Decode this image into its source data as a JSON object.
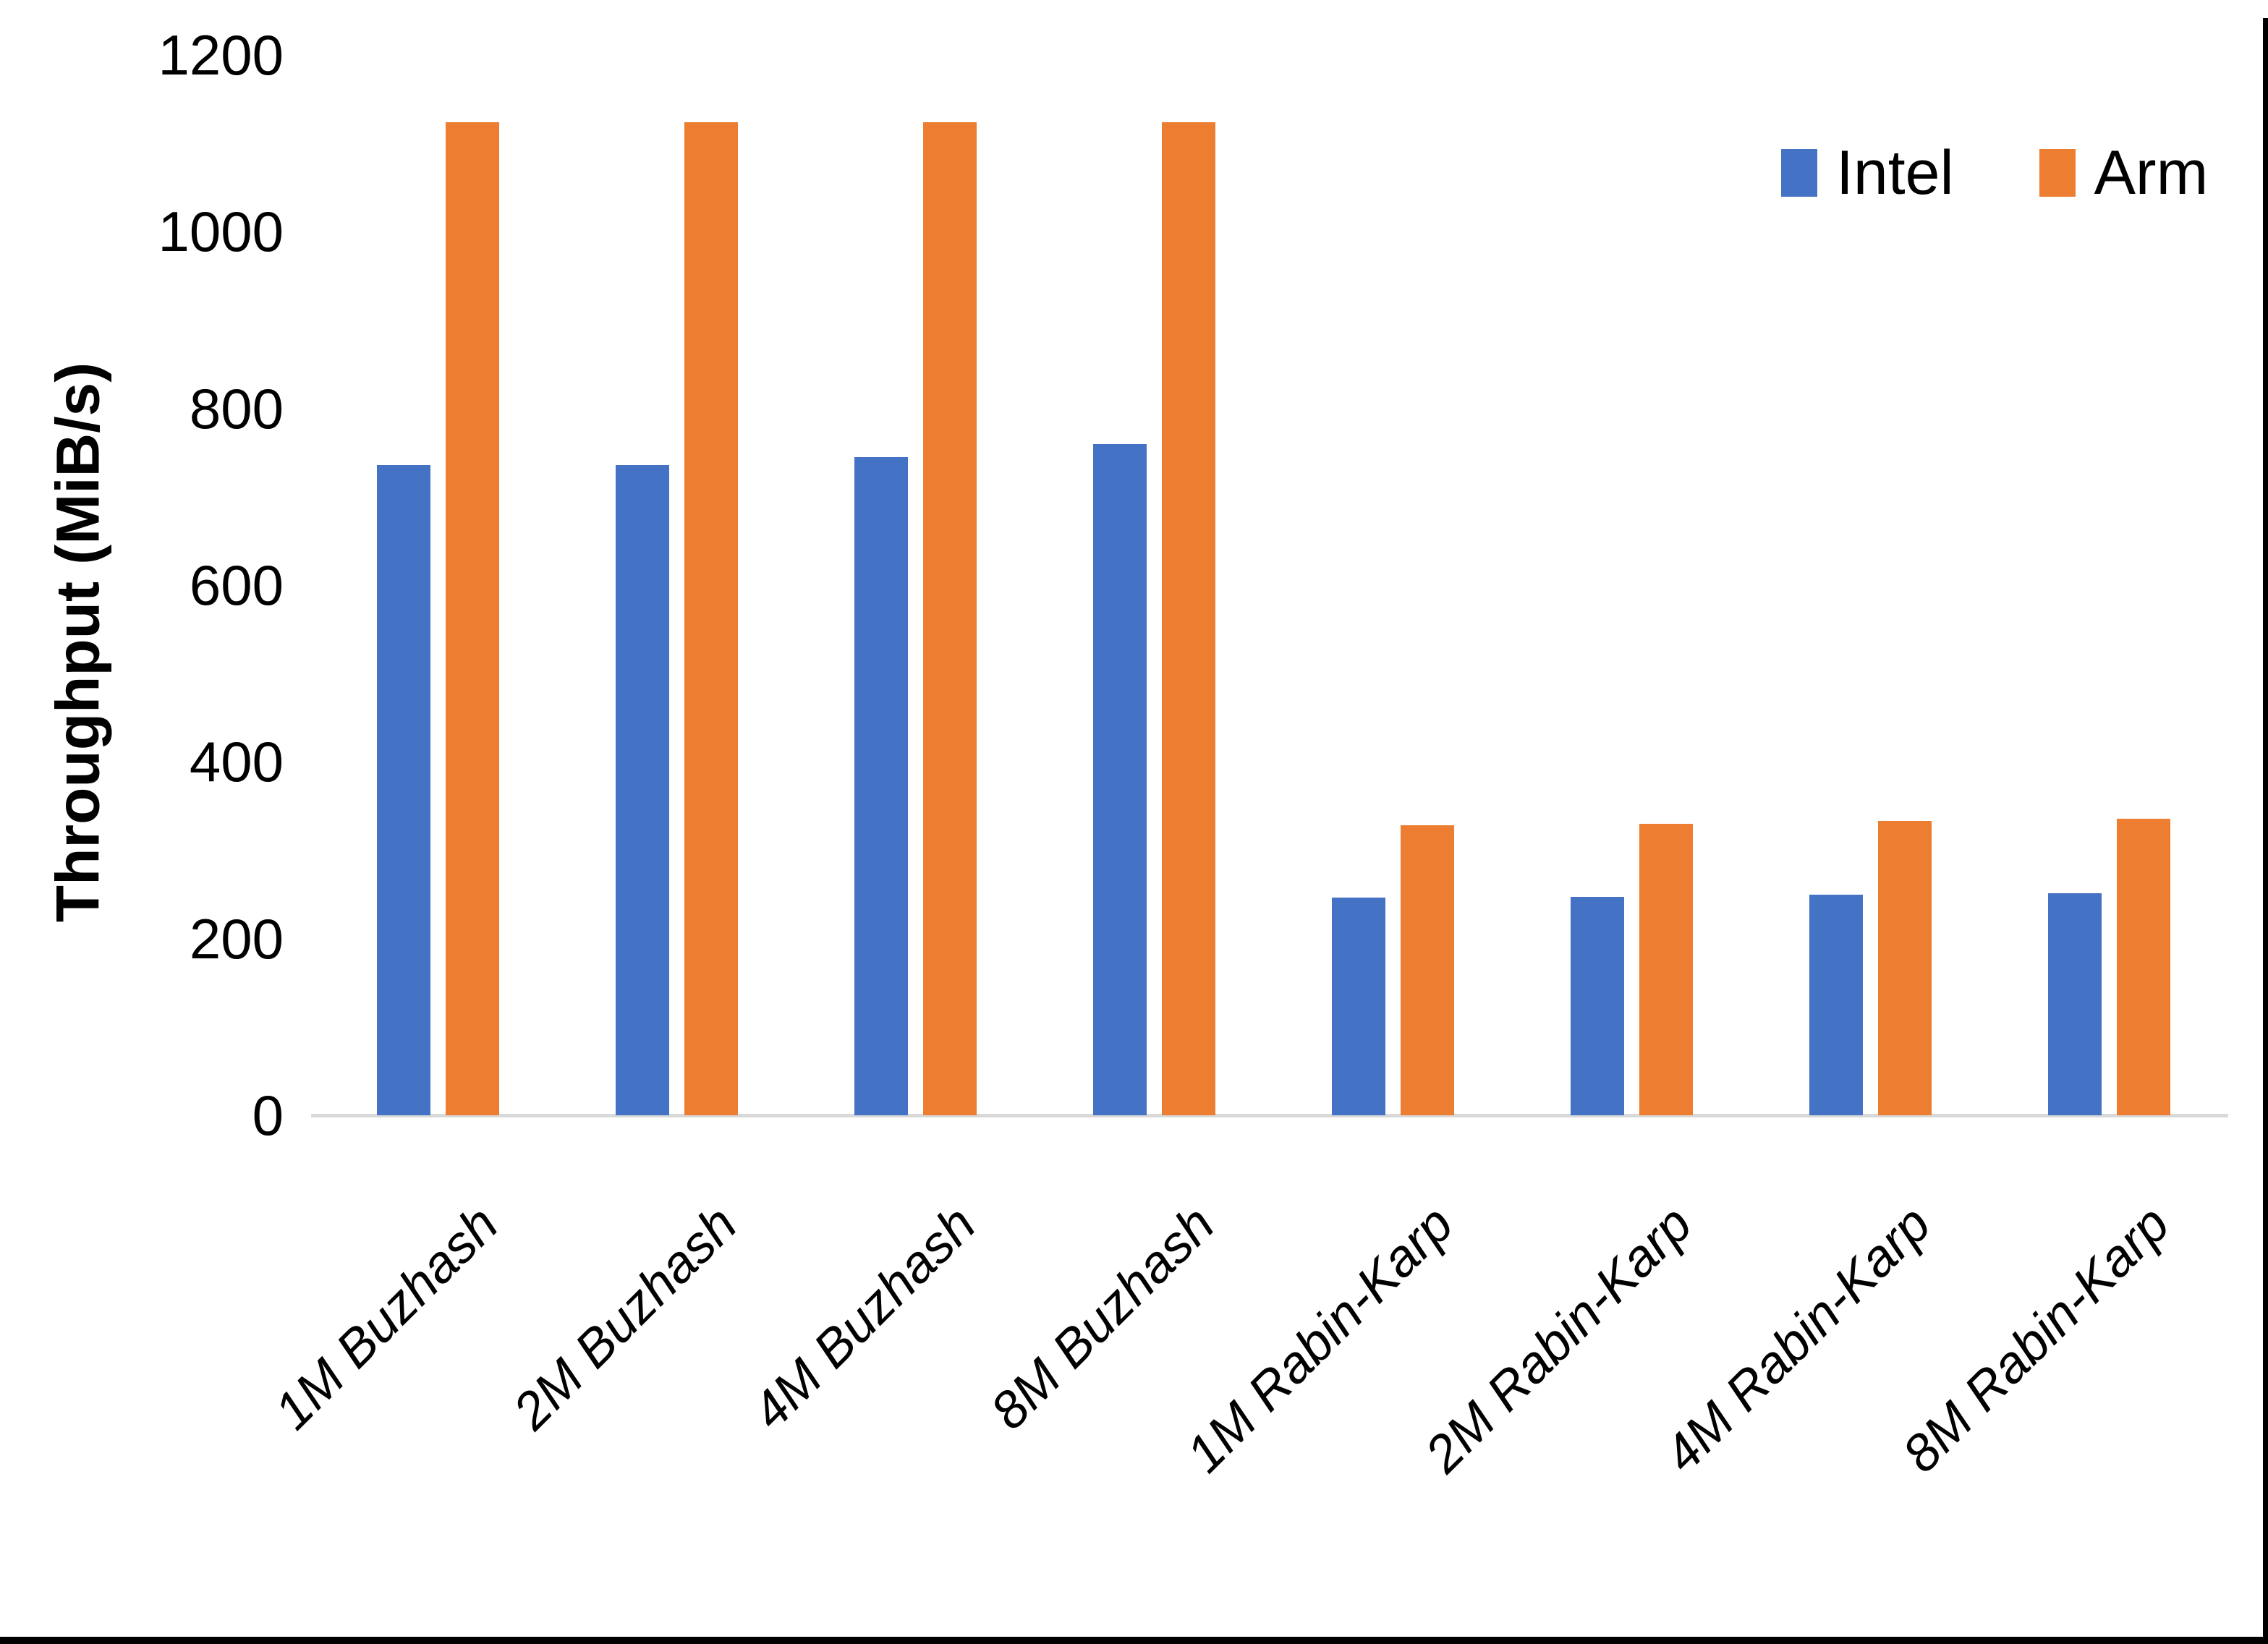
{
  "chart_data": {
    "type": "bar",
    "title": "",
    "xlabel": "",
    "ylabel": "Throughput (MiB/s)",
    "ylim": [
      0,
      1200
    ],
    "yticks": [
      0,
      200,
      400,
      600,
      800,
      1000,
      1200
    ],
    "grid": false,
    "legend_position": "top-right",
    "categories": [
      "1M Buzhash",
      "2M Buzhash",
      "4M Buzhash",
      "8M Buzhash",
      "1M Rabin-Karp",
      "2M Rabin-Karp",
      "4M Rabin-Karp",
      "8M Rabin-Karp"
    ],
    "series": [
      {
        "name": "Intel",
        "color": "#4472C4",
        "values": [
          736,
          736,
          745,
          760,
          246,
          247,
          250,
          251
        ]
      },
      {
        "name": "Arm",
        "color": "#ED7D31",
        "values": [
          1124,
          1124,
          1124,
          1124,
          328,
          330,
          333,
          336
        ]
      }
    ]
  },
  "colors": {
    "axis_line": "#d9d9d9",
    "text": "#000000",
    "frame": "#000000"
  }
}
